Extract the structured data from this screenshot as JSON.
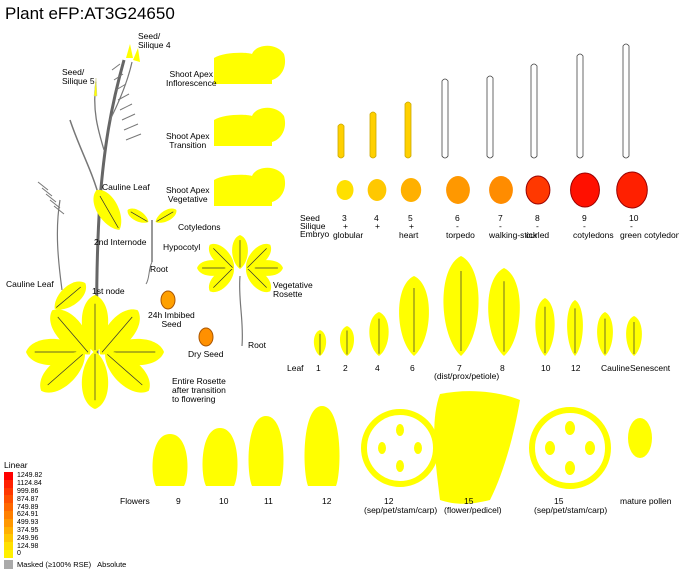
{
  "header": {
    "title": "Plant eFP:AT3G24650"
  },
  "colors": {
    "scale": [
      "#fff000",
      "#ffe000",
      "#ffc800",
      "#ffb000",
      "#ff9800",
      "#ff8000",
      "#ff6800",
      "#ff5000",
      "#ff3800",
      "#ff2000",
      "#ff0000"
    ],
    "masked": "#aaaaaa",
    "outline": "#000000"
  },
  "plant_labels": {
    "seed_silique_4": "Seed/\nSilique 4",
    "seed_silique_5": "Seed/\nSilique 5",
    "cauline_leaf_upper": "Cauline Leaf",
    "internode2": "2nd Internode",
    "cotyledons": "Cotyledons",
    "hypocotyl": "Hypocotyl",
    "root_seedling": "Root",
    "cauline_leaf_left": "Cauline Leaf",
    "first_node": "1st node",
    "imbibed_seed": "24h Imbibed\nSeed",
    "dry_seed": "Dry Seed",
    "veg_rosette": "Vegetative\nRosette",
    "root_rosette": "Root",
    "entire_rosette": "Entire Rosette\nafter transition\nto flowering"
  },
  "shoot_apex": [
    {
      "label": "Shoot Apex\nInflorescence"
    },
    {
      "label": "Shoot Apex\nTransition"
    },
    {
      "label": "Shoot Apex\nVegetative"
    }
  ],
  "seed_row": {
    "row_labels": [
      "Seed",
      "Silique",
      "Embryo"
    ],
    "stages": [
      {
        "num": "3",
        "silique": "+",
        "embryo": "globular",
        "color": "#ffe000"
      },
      {
        "num": "4",
        "silique": "+",
        "embryo": "",
        "color": "#ffc800"
      },
      {
        "num": "5",
        "silique": "+",
        "embryo": "heart",
        "color": "#ffb000"
      },
      {
        "num": "6",
        "silique": "-",
        "embryo": "torpedo",
        "color": "#ff9800"
      },
      {
        "num": "7",
        "silique": "-",
        "embryo": "walking-stick",
        "color": "#ff8c00"
      },
      {
        "num": "8",
        "silique": "-",
        "embryo": "curled",
        "color": "#ff3800"
      },
      {
        "num": "9",
        "silique": "-",
        "embryo": "cotyledons",
        "color": "#ff1000"
      },
      {
        "num": "10",
        "silique": "-",
        "embryo": "green cotyledons",
        "color": "#ff2000"
      }
    ]
  },
  "leaf_row": {
    "label": "Leaf",
    "items": [
      "1",
      "2",
      "4",
      "6",
      "7",
      "8",
      "10",
      "12",
      "Cauline",
      "Senescent"
    ],
    "sublabel": "(dist/prox/petiole)"
  },
  "flower_row": {
    "label": "Flowers",
    "items": [
      "9",
      "10",
      "11",
      "12",
      "12",
      "15",
      "15",
      "mature pollen"
    ],
    "sublabels": [
      "",
      "",
      "",
      "",
      "(sep/pet/stam/carp)",
      "(flower/pedicel)",
      "(sep/pet/stam/carp)",
      ""
    ]
  },
  "legend": {
    "title": "Linear",
    "values": [
      "1249.82",
      "1124.84",
      "999.86",
      "874.87",
      "749.89",
      "624.91",
      "499.93",
      "374.95",
      "249.96",
      "124.98",
      "0"
    ],
    "masked_label": "Masked (≥100% RSE)",
    "absolute_label": "Absolute"
  }
}
